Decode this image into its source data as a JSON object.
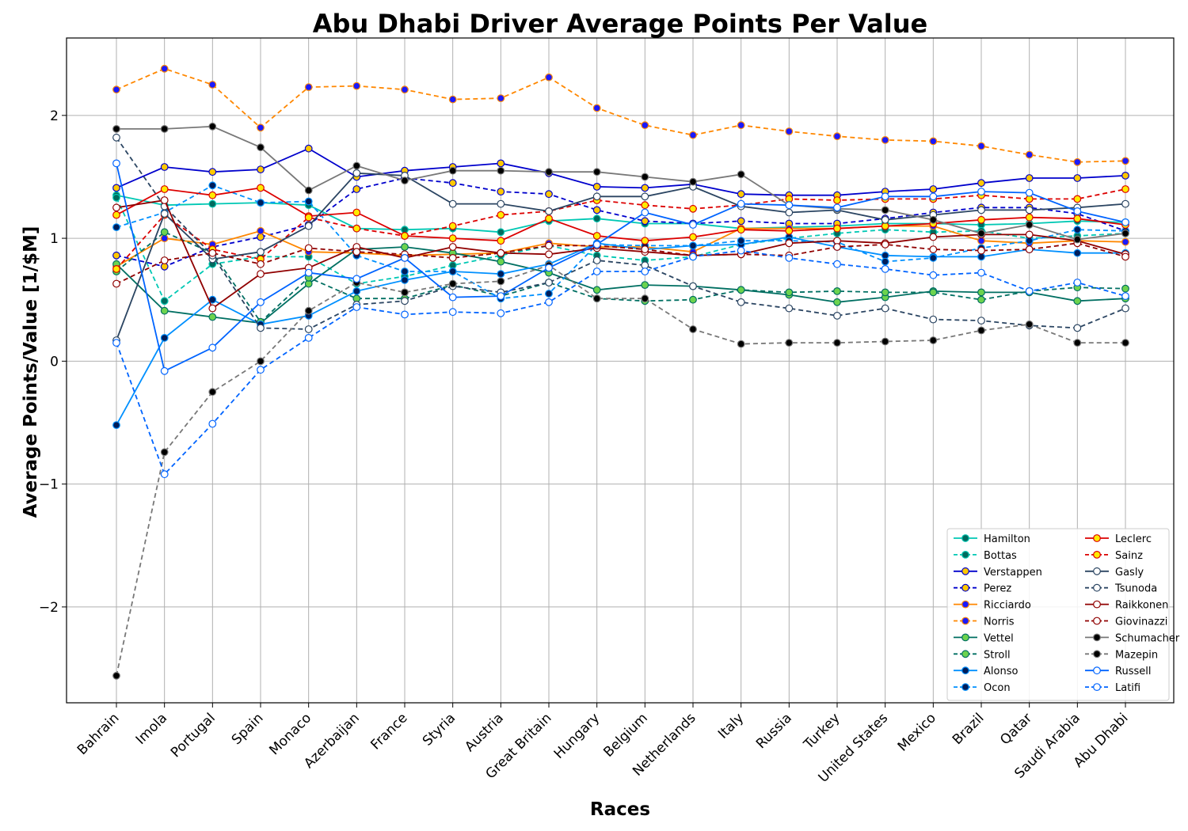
{
  "chart_data": {
    "type": "line",
    "title": "Abu Dhabi Driver Average Points Per Value",
    "xlabel": "Races",
    "ylabel": "Average Points/Value [1/$M]",
    "ylim": [
      -2.78,
      2.63
    ],
    "yticks": [
      -2,
      -1,
      0,
      1,
      2
    ],
    "ytick_labels": [
      "−2",
      "−1",
      "0",
      "1",
      "2"
    ],
    "grid": true,
    "legend_position": "lower-right",
    "legend_columns": 2,
    "categories": [
      "Bahrain",
      "Imola",
      "Portugal",
      "Spain",
      "Monaco",
      "Azerbaijan",
      "France",
      "Styria",
      "Austria",
      "Great Britain",
      "Hungary",
      "Belgium",
      "Netherlands",
      "Italy",
      "Russia",
      "Turkey",
      "United States",
      "Mexico",
      "Brazil",
      "Qatar",
      "Saudi Arabia",
      "Abu Dhabi"
    ],
    "series": [
      {
        "name": "Hamilton",
        "color": "#00c8b4",
        "dashed": false,
        "marker_fill": "#006b5e",
        "values": [
          1.35,
          1.27,
          1.28,
          1.29,
          1.27,
          1.08,
          1.07,
          1.08,
          1.05,
          1.14,
          1.16,
          1.12,
          1.12,
          1.08,
          1.09,
          1.1,
          1.12,
          1.12,
          1.11,
          1.12,
          1.14,
          1.13
        ]
      },
      {
        "name": "Bottas",
        "color": "#00c8b4",
        "dashed": true,
        "marker_fill": "#006b5e",
        "values": [
          1.33,
          0.49,
          0.79,
          0.85,
          0.85,
          0.63,
          0.69,
          0.78,
          0.86,
          0.94,
          0.86,
          0.82,
          0.85,
          0.95,
          1.0,
          1.04,
          1.07,
          1.05,
          1.06,
          1.0,
          1.02,
          1.04
        ]
      },
      {
        "name": "Verstappen",
        "color": "#0000cc",
        "dashed": false,
        "marker_fill": "#ffc800",
        "values": [
          1.41,
          1.58,
          1.54,
          1.56,
          1.73,
          1.5,
          1.55,
          1.58,
          1.61,
          1.53,
          1.42,
          1.41,
          1.44,
          1.36,
          1.35,
          1.35,
          1.38,
          1.4,
          1.45,
          1.49,
          1.49,
          1.51
        ]
      },
      {
        "name": "Perez",
        "color": "#0000cc",
        "dashed": true,
        "marker_fill": "#ffc800",
        "values": [
          0.86,
          0.77,
          0.93,
          1.01,
          1.11,
          1.4,
          1.49,
          1.45,
          1.38,
          1.36,
          1.23,
          1.14,
          1.12,
          1.14,
          1.12,
          1.12,
          1.16,
          1.21,
          1.25,
          1.25,
          1.2,
          1.06
        ]
      },
      {
        "name": "Ricciardo",
        "color": "#ff8700",
        "dashed": false,
        "marker_fill": "#1a1aff",
        "values": [
          0.77,
          1.0,
          0.95,
          1.06,
          0.89,
          0.88,
          0.86,
          0.87,
          0.88,
          0.96,
          0.93,
          0.93,
          0.89,
          1.08,
          1.08,
          1.08,
          1.1,
          1.1,
          0.98,
          0.96,
          0.98,
          0.97
        ]
      },
      {
        "name": "Norris",
        "color": "#ff8700",
        "dashed": true,
        "marker_fill": "#1a1aff",
        "values": [
          2.21,
          2.38,
          2.25,
          1.9,
          2.23,
          2.24,
          2.21,
          2.13,
          2.14,
          2.31,
          2.06,
          1.92,
          1.84,
          1.92,
          1.87,
          1.83,
          1.8,
          1.79,
          1.75,
          1.68,
          1.62,
          1.63
        ]
      },
      {
        "name": "Vettel",
        "color": "#006f62",
        "dashed": false,
        "marker_fill": "#6cd34e",
        "values": [
          0.79,
          0.41,
          0.36,
          0.31,
          0.63,
          0.91,
          0.93,
          0.88,
          0.81,
          0.72,
          0.58,
          0.62,
          0.61,
          0.58,
          0.54,
          0.48,
          0.52,
          0.57,
          0.56,
          0.56,
          0.49,
          0.51
        ]
      },
      {
        "name": "Stroll",
        "color": "#006f62",
        "dashed": true,
        "marker_fill": "#6cd34e",
        "values": [
          0.73,
          1.05,
          0.88,
          0.32,
          0.68,
          0.51,
          0.51,
          0.62,
          0.53,
          0.64,
          0.51,
          0.49,
          0.5,
          0.58,
          0.56,
          0.57,
          0.56,
          0.56,
          0.5,
          0.57,
          0.6,
          0.59
        ]
      },
      {
        "name": "Alonso",
        "color": "#0090ff",
        "dashed": false,
        "marker_fill": "#001e5a",
        "values": [
          -0.52,
          0.19,
          0.5,
          0.3,
          0.37,
          0.57,
          0.66,
          0.73,
          0.71,
          0.79,
          0.96,
          0.91,
          0.94,
          0.95,
          1.01,
          0.93,
          0.86,
          0.85,
          0.85,
          0.91,
          0.88,
          0.88
        ]
      },
      {
        "name": "Ocon",
        "color": "#0090ff",
        "dashed": true,
        "marker_fill": "#001e5a",
        "values": [
          1.09,
          1.21,
          1.43,
          1.29,
          1.3,
          0.86,
          0.73,
          0.73,
          0.51,
          0.55,
          0.95,
          0.94,
          0.94,
          0.98,
          0.98,
          0.97,
          0.81,
          0.84,
          0.92,
          0.98,
          1.07,
          1.06
        ]
      },
      {
        "name": "Leclerc",
        "color": "#dc0000",
        "dashed": false,
        "marker_fill": "#ffeb00",
        "values": [
          1.19,
          1.4,
          1.35,
          1.41,
          1.18,
          1.21,
          1.02,
          1.0,
          0.98,
          1.16,
          1.02,
          0.98,
          1.01,
          1.07,
          1.06,
          1.08,
          1.1,
          1.12,
          1.15,
          1.17,
          1.16,
          1.11
        ]
      },
      {
        "name": "Sainz",
        "color": "#dc0000",
        "dashed": true,
        "marker_fill": "#ffeb00",
        "values": [
          0.75,
          1.19,
          0.91,
          0.83,
          1.17,
          1.08,
          1.02,
          1.1,
          1.19,
          1.22,
          1.31,
          1.27,
          1.24,
          1.27,
          1.32,
          1.31,
          1.32,
          1.32,
          1.35,
          1.32,
          1.32,
          1.4
        ]
      },
      {
        "name": "Gasly",
        "color": "#2b4562",
        "dashed": false,
        "marker_fill": "#ffffff",
        "values": [
          0.17,
          1.2,
          0.83,
          0.89,
          1.1,
          1.53,
          1.51,
          1.28,
          1.28,
          1.22,
          1.34,
          1.34,
          1.42,
          1.26,
          1.21,
          1.23,
          1.15,
          1.19,
          1.23,
          1.23,
          1.25,
          1.28
        ]
      },
      {
        "name": "Tsunoda",
        "color": "#2b4562",
        "dashed": true,
        "marker_fill": "#ffffff",
        "values": [
          1.82,
          1.26,
          0.86,
          0.27,
          0.26,
          0.46,
          0.49,
          0.61,
          0.56,
          0.64,
          0.82,
          0.78,
          0.61,
          0.48,
          0.43,
          0.37,
          0.43,
          0.34,
          0.33,
          0.29,
          0.27,
          0.43
        ]
      },
      {
        "name": "Raikkonen",
        "color": "#900000",
        "dashed": false,
        "marker_fill": "#ffffff",
        "values": [
          1.25,
          1.31,
          0.43,
          0.71,
          0.76,
          0.93,
          0.84,
          0.93,
          0.88,
          0.87,
          0.92,
          0.89,
          0.86,
          0.87,
          0.96,
          0.98,
          0.96,
          1.01,
          1.03,
          1.03,
          0.98,
          0.87
        ]
      },
      {
        "name": "Giovinazzi",
        "color": "#900000",
        "dashed": true,
        "marker_fill": "#ffffff",
        "values": [
          0.63,
          0.82,
          0.88,
          0.79,
          0.92,
          0.89,
          0.87,
          0.84,
          0.88,
          0.94,
          0.94,
          0.91,
          0.86,
          0.87,
          0.86,
          0.93,
          0.95,
          0.91,
          0.9,
          0.91,
          0.96,
          0.85
        ]
      },
      {
        "name": "Schumacher",
        "color": "#787878",
        "dashed": false,
        "marker_fill": "#000000",
        "values": [
          1.89,
          1.89,
          1.91,
          1.74,
          1.39,
          1.59,
          1.47,
          1.55,
          1.55,
          1.54,
          1.54,
          1.5,
          1.46,
          1.52,
          1.27,
          1.24,
          1.23,
          1.15,
          1.04,
          1.11,
          0.99,
          1.04
        ]
      },
      {
        "name": "Mazepin",
        "color": "#787878",
        "dashed": true,
        "marker_fill": "#000000",
        "values": [
          -2.56,
          -0.74,
          -0.25,
          0.0,
          0.41,
          0.64,
          0.56,
          0.63,
          0.65,
          0.78,
          0.51,
          0.51,
          0.26,
          0.14,
          0.15,
          0.15,
          0.16,
          0.17,
          0.25,
          0.3,
          0.15,
          0.15
        ]
      },
      {
        "name": "Russell",
        "color": "#0064ff",
        "dashed": false,
        "marker_fill": "#ffffff",
        "values": [
          1.61,
          -0.08,
          0.11,
          0.48,
          0.72,
          0.67,
          0.84,
          0.52,
          0.53,
          0.76,
          0.95,
          1.21,
          1.11,
          1.28,
          1.27,
          1.25,
          1.34,
          1.34,
          1.38,
          1.37,
          1.22,
          1.13
        ]
      },
      {
        "name": "Latifi",
        "color": "#0064ff",
        "dashed": true,
        "marker_fill": "#ffffff",
        "values": [
          0.15,
          -0.92,
          -0.51,
          -0.07,
          0.19,
          0.44,
          0.38,
          0.4,
          0.39,
          0.48,
          0.73,
          0.73,
          0.85,
          0.9,
          0.84,
          0.79,
          0.75,
          0.7,
          0.72,
          0.57,
          0.64,
          0.53
        ]
      }
    ]
  }
}
